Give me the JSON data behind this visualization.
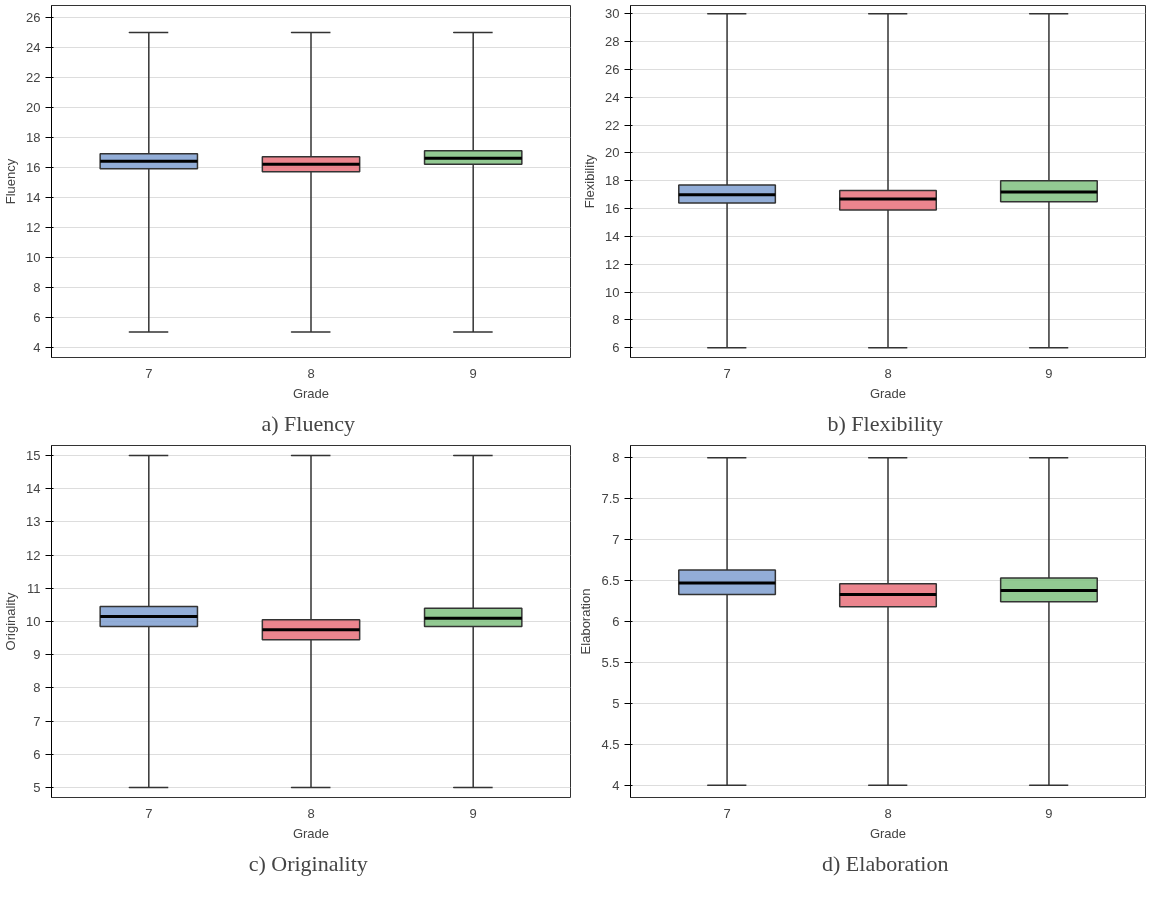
{
  "chart_data": [
    {
      "type": "box",
      "categories": [
        "7",
        "8",
        "9"
      ],
      "xlabel": "Grade",
      "ylabel": "Fluency",
      "annotations": [
        "a)  Fluency"
      ],
      "colors": [
        "#7f9fd0",
        "#e8707a",
        "#7fbf7f"
      ],
      "ylim": [
        3.3,
        26.8
      ],
      "yticks": [
        4,
        6,
        8,
        10,
        12,
        14,
        16,
        18,
        20,
        22,
        24,
        26
      ],
      "grid": "y",
      "boxes": [
        {
          "low": 5,
          "q1": 15.9,
          "median": 16.4,
          "q3": 16.9,
          "high": 25
        },
        {
          "low": 5,
          "q1": 15.7,
          "median": 16.2,
          "q3": 16.7,
          "high": 25
        },
        {
          "low": 5,
          "q1": 16.2,
          "median": 16.6,
          "q3": 17.1,
          "high": 25
        }
      ]
    },
    {
      "type": "box",
      "categories": [
        "7",
        "8",
        "9"
      ],
      "xlabel": "Grade",
      "ylabel": "Flexibility",
      "annotations": [
        "b)  Flexibility"
      ],
      "colors": [
        "#7f9fd0",
        "#e8707a",
        "#7fbf7f"
      ],
      "ylim": [
        5.3,
        30.6
      ],
      "yticks": [
        6,
        8,
        10,
        12,
        14,
        16,
        18,
        20,
        22,
        24,
        26,
        28,
        30
      ],
      "grid": "y",
      "boxes": [
        {
          "low": 6,
          "q1": 16.4,
          "median": 17.0,
          "q3": 17.7,
          "high": 30
        },
        {
          "low": 6,
          "q1": 15.9,
          "median": 16.7,
          "q3": 17.3,
          "high": 30
        },
        {
          "low": 6,
          "q1": 16.5,
          "median": 17.2,
          "q3": 18.0,
          "high": 30
        }
      ]
    },
    {
      "type": "box",
      "categories": [
        "7",
        "8",
        "9"
      ],
      "xlabel": "Grade",
      "ylabel": "Originality",
      "annotations": [
        "c)  Originality"
      ],
      "colors": [
        "#7f9fd0",
        "#e8707a",
        "#7fbf7f"
      ],
      "ylim": [
        4.7,
        15.3
      ],
      "yticks": [
        5,
        6,
        7,
        8,
        9,
        10,
        11,
        12,
        13,
        14,
        15
      ],
      "grid": "y",
      "boxes": [
        {
          "low": 5,
          "q1": 9.85,
          "median": 10.15,
          "q3": 10.45,
          "high": 15
        },
        {
          "low": 5,
          "q1": 9.45,
          "median": 9.75,
          "q3": 10.05,
          "high": 15
        },
        {
          "low": 5,
          "q1": 9.85,
          "median": 10.1,
          "q3": 10.4,
          "high": 15
        }
      ]
    },
    {
      "type": "box",
      "categories": [
        "7",
        "8",
        "9"
      ],
      "xlabel": "Grade",
      "ylabel": "Elaboration",
      "annotations": [
        "d)  Elaboration"
      ],
      "colors": [
        "#7f9fd0",
        "#e8707a",
        "#7fbf7f"
      ],
      "ylim": [
        3.85,
        8.15
      ],
      "yticks": [
        4,
        4.5,
        5,
        5.5,
        6,
        6.5,
        7,
        7.5,
        8
      ],
      "grid": "y",
      "boxes": [
        {
          "low": 4,
          "q1": 6.33,
          "median": 6.47,
          "q3": 6.63,
          "high": 8
        },
        {
          "low": 4,
          "q1": 6.18,
          "median": 6.33,
          "q3": 6.46,
          "high": 8
        },
        {
          "low": 4,
          "q1": 6.24,
          "median": 6.38,
          "q3": 6.53,
          "high": 8
        }
      ]
    }
  ]
}
